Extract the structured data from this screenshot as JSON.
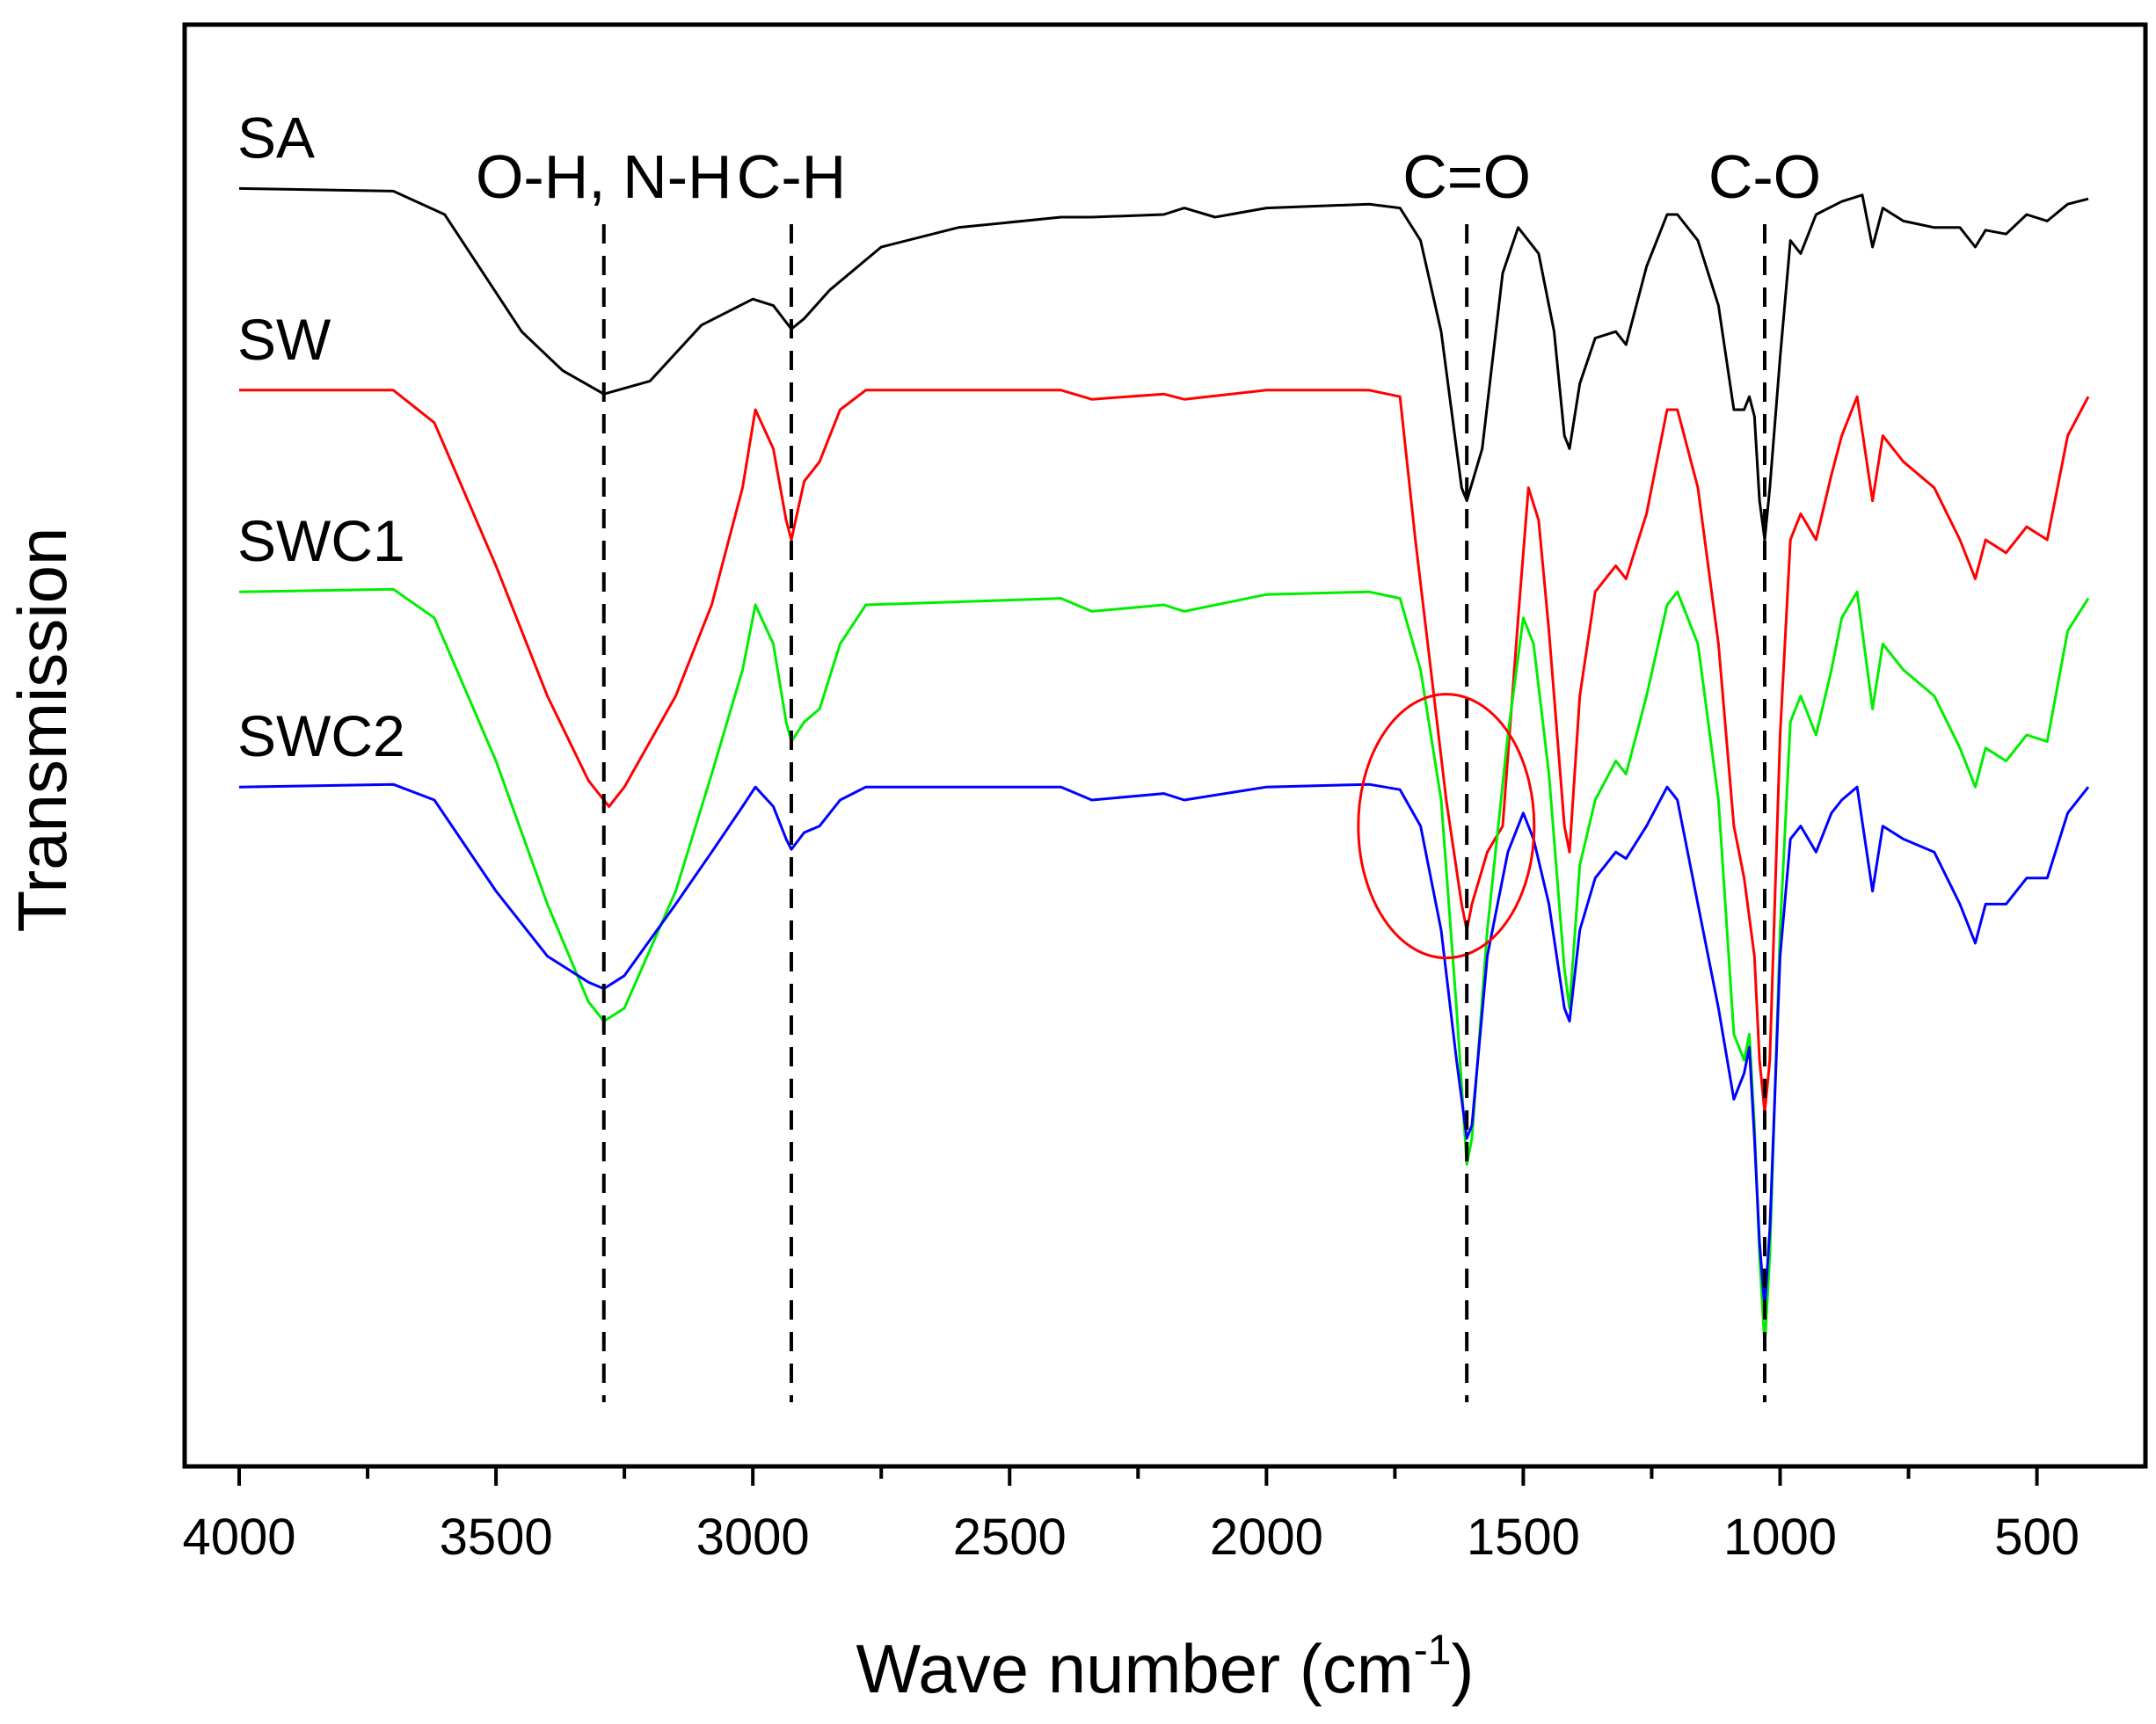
{
  "chart_data": {
    "type": "line",
    "title": "",
    "xlabel": "Wave number (cm",
    "xlabel_superscript": "-1",
    "xlabel_suffix": ")",
    "ylabel": "Transmission",
    "xlim": [
      4000,
      400
    ],
    "ylim": [
      0,
      1
    ],
    "x_reversed": true,
    "grid": false,
    "x_ticks": [
      4000,
      3500,
      3000,
      2500,
      2000,
      1500,
      1000,
      500
    ],
    "x_tick_labels": [
      "4000",
      "3500",
      "3000",
      "2500",
      "2000",
      "1500",
      "1000",
      "500"
    ],
    "x_minor_ticks": [
      3750,
      3250,
      2750,
      2250,
      1750,
      1250,
      750
    ],
    "annotations": [
      {
        "label": "O-H, N-H",
        "x": 3290
      },
      {
        "label": "C-H",
        "x": 2925
      },
      {
        "label": "C=O",
        "x": 1610
      },
      {
        "label": "C-O",
        "x": 1030
      }
    ],
    "highlight": {
      "shape": "ellipse",
      "center_x": 1650,
      "center_y": 0.48,
      "color": "#ff0000"
    },
    "series": [
      {
        "name": "SA",
        "color": "#000000",
        "points": [
          [
            4000,
            0.97
          ],
          [
            3700,
            0.968
          ],
          [
            3600,
            0.95
          ],
          [
            3450,
            0.86
          ],
          [
            3370,
            0.83
          ],
          [
            3290,
            0.812
          ],
          [
            3200,
            0.822
          ],
          [
            3100,
            0.865
          ],
          [
            3000,
            0.885
          ],
          [
            2960,
            0.88
          ],
          [
            2925,
            0.862
          ],
          [
            2900,
            0.87
          ],
          [
            2850,
            0.892
          ],
          [
            2750,
            0.925
          ],
          [
            2600,
            0.94
          ],
          [
            2400,
            0.948
          ],
          [
            2340,
            0.948
          ],
          [
            2200,
            0.95
          ],
          [
            2160,
            0.955
          ],
          [
            2100,
            0.948
          ],
          [
            2000,
            0.955
          ],
          [
            1800,
            0.958
          ],
          [
            1740,
            0.955
          ],
          [
            1700,
            0.93
          ],
          [
            1660,
            0.86
          ],
          [
            1620,
            0.74
          ],
          [
            1610,
            0.73
          ],
          [
            1580,
            0.77
          ],
          [
            1540,
            0.905
          ],
          [
            1510,
            0.94
          ],
          [
            1470,
            0.92
          ],
          [
            1440,
            0.86
          ],
          [
            1420,
            0.78
          ],
          [
            1410,
            0.77
          ],
          [
            1390,
            0.82
          ],
          [
            1360,
            0.855
          ],
          [
            1320,
            0.86
          ],
          [
            1300,
            0.85
          ],
          [
            1260,
            0.91
          ],
          [
            1220,
            0.95
          ],
          [
            1200,
            0.95
          ],
          [
            1160,
            0.93
          ],
          [
            1120,
            0.88
          ],
          [
            1090,
            0.8
          ],
          [
            1070,
            0.8
          ],
          [
            1060,
            0.81
          ],
          [
            1050,
            0.795
          ],
          [
            1040,
            0.73
          ],
          [
            1030,
            0.7
          ],
          [
            1020,
            0.74
          ],
          [
            1000,
            0.84
          ],
          [
            980,
            0.93
          ],
          [
            960,
            0.92
          ],
          [
            930,
            0.95
          ],
          [
            880,
            0.96
          ],
          [
            840,
            0.965
          ],
          [
            820,
            0.925
          ],
          [
            800,
            0.955
          ],
          [
            760,
            0.945
          ],
          [
            700,
            0.94
          ],
          [
            650,
            0.94
          ],
          [
            620,
            0.925
          ],
          [
            600,
            0.938
          ],
          [
            560,
            0.935
          ],
          [
            520,
            0.95
          ],
          [
            480,
            0.945
          ],
          [
            440,
            0.958
          ],
          [
            400,
            0.962
          ]
        ]
      },
      {
        "name": "SW",
        "color": "#ff0000",
        "points": [
          [
            4000,
            0.815
          ],
          [
            3700,
            0.815
          ],
          [
            3620,
            0.79
          ],
          [
            3500,
            0.68
          ],
          [
            3400,
            0.58
          ],
          [
            3320,
            0.515
          ],
          [
            3280,
            0.495
          ],
          [
            3250,
            0.51
          ],
          [
            3150,
            0.58
          ],
          [
            3080,
            0.65
          ],
          [
            3020,
            0.74
          ],
          [
            2995,
            0.8
          ],
          [
            2960,
            0.77
          ],
          [
            2935,
            0.715
          ],
          [
            2925,
            0.7
          ],
          [
            2900,
            0.745
          ],
          [
            2870,
            0.76
          ],
          [
            2830,
            0.8
          ],
          [
            2780,
            0.815
          ],
          [
            2400,
            0.815
          ],
          [
            2340,
            0.808
          ],
          [
            2200,
            0.812
          ],
          [
            2160,
            0.808
          ],
          [
            2000,
            0.815
          ],
          [
            1800,
            0.815
          ],
          [
            1740,
            0.81
          ],
          [
            1710,
            0.7
          ],
          [
            1680,
            0.6
          ],
          [
            1650,
            0.5
          ],
          [
            1620,
            0.42
          ],
          [
            1610,
            0.4
          ],
          [
            1600,
            0.42
          ],
          [
            1570,
            0.46
          ],
          [
            1540,
            0.48
          ],
          [
            1510,
            0.64
          ],
          [
            1490,
            0.74
          ],
          [
            1470,
            0.715
          ],
          [
            1450,
            0.63
          ],
          [
            1420,
            0.48
          ],
          [
            1410,
            0.46
          ],
          [
            1390,
            0.58
          ],
          [
            1360,
            0.66
          ],
          [
            1320,
            0.68
          ],
          [
            1300,
            0.67
          ],
          [
            1260,
            0.72
          ],
          [
            1220,
            0.8
          ],
          [
            1200,
            0.8
          ],
          [
            1160,
            0.74
          ],
          [
            1120,
            0.62
          ],
          [
            1090,
            0.48
          ],
          [
            1070,
            0.44
          ],
          [
            1050,
            0.38
          ],
          [
            1040,
            0.3
          ],
          [
            1030,
            0.26
          ],
          [
            1020,
            0.3
          ],
          [
            1000,
            0.55
          ],
          [
            980,
            0.7
          ],
          [
            960,
            0.72
          ],
          [
            930,
            0.7
          ],
          [
            900,
            0.75
          ],
          [
            880,
            0.78
          ],
          [
            850,
            0.81
          ],
          [
            820,
            0.73
          ],
          [
            800,
            0.78
          ],
          [
            760,
            0.76
          ],
          [
            700,
            0.74
          ],
          [
            650,
            0.7
          ],
          [
            620,
            0.67
          ],
          [
            600,
            0.7
          ],
          [
            560,
            0.69
          ],
          [
            520,
            0.71
          ],
          [
            480,
            0.7
          ],
          [
            440,
            0.78
          ],
          [
            400,
            0.81
          ]
        ]
      },
      {
        "name": "SWC1",
        "color": "#00ee00",
        "points": [
          [
            4000,
            0.66
          ],
          [
            3700,
            0.662
          ],
          [
            3620,
            0.64
          ],
          [
            3500,
            0.53
          ],
          [
            3400,
            0.42
          ],
          [
            3320,
            0.345
          ],
          [
            3290,
            0.33
          ],
          [
            3250,
            0.34
          ],
          [
            3150,
            0.43
          ],
          [
            3080,
            0.52
          ],
          [
            3020,
            0.6
          ],
          [
            2995,
            0.65
          ],
          [
            2960,
            0.62
          ],
          [
            2935,
            0.56
          ],
          [
            2925,
            0.545
          ],
          [
            2900,
            0.56
          ],
          [
            2870,
            0.57
          ],
          [
            2830,
            0.62
          ],
          [
            2780,
            0.65
          ],
          [
            2400,
            0.655
          ],
          [
            2340,
            0.645
          ],
          [
            2200,
            0.65
          ],
          [
            2160,
            0.645
          ],
          [
            2000,
            0.658
          ],
          [
            1800,
            0.66
          ],
          [
            1740,
            0.655
          ],
          [
            1700,
            0.6
          ],
          [
            1660,
            0.5
          ],
          [
            1630,
            0.34
          ],
          [
            1610,
            0.22
          ],
          [
            1600,
            0.24
          ],
          [
            1570,
            0.4
          ],
          [
            1530,
            0.55
          ],
          [
            1500,
            0.64
          ],
          [
            1480,
            0.62
          ],
          [
            1450,
            0.52
          ],
          [
            1420,
            0.37
          ],
          [
            1410,
            0.34
          ],
          [
            1390,
            0.45
          ],
          [
            1360,
            0.5
          ],
          [
            1320,
            0.53
          ],
          [
            1300,
            0.52
          ],
          [
            1260,
            0.58
          ],
          [
            1220,
            0.65
          ],
          [
            1200,
            0.66
          ],
          [
            1160,
            0.62
          ],
          [
            1120,
            0.5
          ],
          [
            1090,
            0.32
          ],
          [
            1070,
            0.3
          ],
          [
            1060,
            0.32
          ],
          [
            1050,
            0.25
          ],
          [
            1040,
            0.15
          ],
          [
            1030,
            0.08
          ],
          [
            1020,
            0.15
          ],
          [
            1000,
            0.4
          ],
          [
            980,
            0.56
          ],
          [
            960,
            0.58
          ],
          [
            930,
            0.55
          ],
          [
            900,
            0.6
          ],
          [
            880,
            0.64
          ],
          [
            850,
            0.66
          ],
          [
            820,
            0.57
          ],
          [
            800,
            0.62
          ],
          [
            760,
            0.6
          ],
          [
            700,
            0.58
          ],
          [
            650,
            0.54
          ],
          [
            620,
            0.51
          ],
          [
            600,
            0.54
          ],
          [
            560,
            0.53
          ],
          [
            520,
            0.55
          ],
          [
            480,
            0.545
          ],
          [
            440,
            0.63
          ],
          [
            400,
            0.655
          ]
        ]
      },
      {
        "name": "SWC2",
        "color": "#0000ff",
        "points": [
          [
            4000,
            0.51
          ],
          [
            3700,
            0.512
          ],
          [
            3620,
            0.5
          ],
          [
            3500,
            0.43
          ],
          [
            3400,
            0.38
          ],
          [
            3320,
            0.36
          ],
          [
            3290,
            0.355
          ],
          [
            3250,
            0.365
          ],
          [
            3150,
            0.42
          ],
          [
            3080,
            0.46
          ],
          [
            3020,
            0.495
          ],
          [
            2995,
            0.51
          ],
          [
            2960,
            0.495
          ],
          [
            2935,
            0.47
          ],
          [
            2925,
            0.462
          ],
          [
            2900,
            0.475
          ],
          [
            2870,
            0.48
          ],
          [
            2830,
            0.5
          ],
          [
            2780,
            0.51
          ],
          [
            2400,
            0.51
          ],
          [
            2340,
            0.5
          ],
          [
            2200,
            0.505
          ],
          [
            2160,
            0.5
          ],
          [
            2000,
            0.51
          ],
          [
            1800,
            0.512
          ],
          [
            1740,
            0.508
          ],
          [
            1700,
            0.48
          ],
          [
            1660,
            0.4
          ],
          [
            1630,
            0.3
          ],
          [
            1610,
            0.24
          ],
          [
            1600,
            0.25
          ],
          [
            1570,
            0.38
          ],
          [
            1530,
            0.46
          ],
          [
            1500,
            0.49
          ],
          [
            1480,
            0.47
          ],
          [
            1450,
            0.42
          ],
          [
            1420,
            0.34
          ],
          [
            1410,
            0.33
          ],
          [
            1390,
            0.4
          ],
          [
            1360,
            0.44
          ],
          [
            1320,
            0.46
          ],
          [
            1300,
            0.455
          ],
          [
            1260,
            0.48
          ],
          [
            1220,
            0.51
          ],
          [
            1200,
            0.5
          ],
          [
            1160,
            0.42
          ],
          [
            1120,
            0.34
          ],
          [
            1090,
            0.27
          ],
          [
            1070,
            0.29
          ],
          [
            1060,
            0.31
          ],
          [
            1050,
            0.24
          ],
          [
            1040,
            0.16
          ],
          [
            1030,
            0.11
          ],
          [
            1020,
            0.17
          ],
          [
            1000,
            0.38
          ],
          [
            980,
            0.47
          ],
          [
            960,
            0.48
          ],
          [
            930,
            0.46
          ],
          [
            900,
            0.49
          ],
          [
            880,
            0.5
          ],
          [
            850,
            0.51
          ],
          [
            820,
            0.43
          ],
          [
            800,
            0.48
          ],
          [
            760,
            0.47
          ],
          [
            700,
            0.46
          ],
          [
            650,
            0.42
          ],
          [
            620,
            0.39
          ],
          [
            600,
            0.42
          ],
          [
            560,
            0.42
          ],
          [
            520,
            0.44
          ],
          [
            480,
            0.44
          ],
          [
            440,
            0.49
          ],
          [
            400,
            0.51
          ]
        ]
      }
    ]
  }
}
